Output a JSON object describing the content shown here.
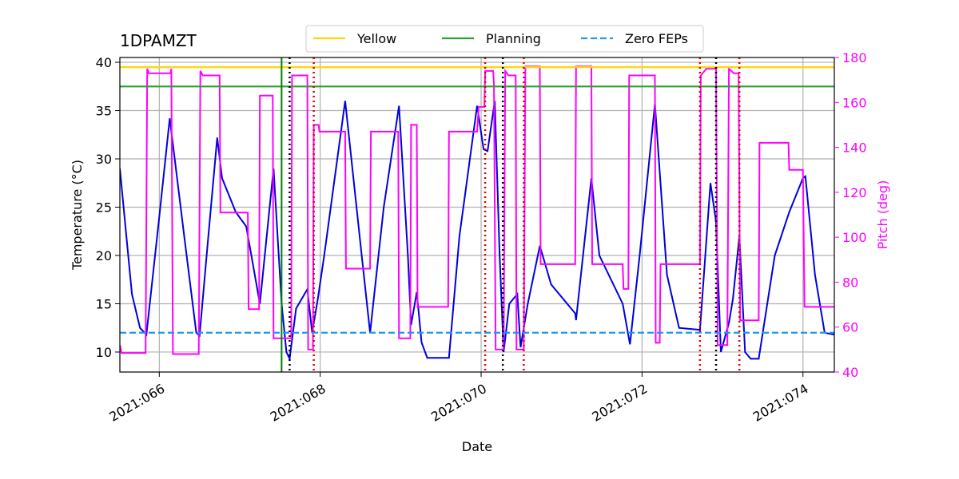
{
  "chart_data": {
    "type": "line",
    "title": "1DPAMZT",
    "xlabel": "Date",
    "ylabel": "Temperature (°C)",
    "y2label": "Pitch (deg)",
    "y2color": "#ff00ff",
    "xlim": [
      65.51,
      74.39
    ],
    "xticks": [
      {
        "value": 66,
        "label": "2021:066"
      },
      {
        "value": 68,
        "label": "2021:068"
      },
      {
        "value": 70,
        "label": "2021:070"
      },
      {
        "value": 72,
        "label": "2021:072"
      },
      {
        "value": 74,
        "label": "2021:074"
      }
    ],
    "ylim": [
      7.93,
      40.5
    ],
    "yticks": [
      10,
      15,
      20,
      25,
      30,
      35,
      40
    ],
    "y2lim": [
      40,
      180
    ],
    "y2ticks": [
      40,
      60,
      80,
      100,
      120,
      140,
      160,
      180
    ],
    "grid": true,
    "hlines": [
      {
        "name": "Yellow",
        "value": 39.5,
        "color": "#ffd700",
        "style": "solid"
      },
      {
        "name": "Planning",
        "value": 37.5,
        "color": "#2ca02c",
        "style": "solid"
      },
      {
        "name": "Zero FEPs",
        "value": 12,
        "color": "#2196f3",
        "style": "dashed"
      }
    ],
    "vlines": [
      {
        "x": 67.52,
        "color": "#008000",
        "style": "solid"
      },
      {
        "x": 67.62,
        "color": "#000000",
        "style": "dotted"
      },
      {
        "x": 70.27,
        "color": "#000000",
        "style": "dotted"
      },
      {
        "x": 72.92,
        "color": "#000000",
        "style": "dotted"
      },
      {
        "x": 67.92,
        "color": "#e00000",
        "style": "dotted"
      },
      {
        "x": 70.05,
        "color": "#e00000",
        "style": "dotted"
      },
      {
        "x": 70.53,
        "color": "#e00000",
        "style": "dotted"
      },
      {
        "x": 72.72,
        "color": "#e00000",
        "style": "dotted"
      },
      {
        "x": 73.21,
        "color": "#e00000",
        "style": "dotted"
      }
    ],
    "series": [
      {
        "color": "#0000e0",
        "axis": "y",
        "x": [
          65.51,
          65.66,
          65.76,
          65.84,
          66.0,
          66.13,
          66.31,
          66.46,
          66.5,
          66.61,
          66.72,
          66.78,
          66.95,
          67.08,
          67.25,
          67.42,
          67.52,
          67.58,
          67.62,
          67.7,
          67.84,
          67.9,
          67.97,
          68.05,
          68.31,
          68.49,
          68.62,
          68.79,
          68.98,
          69.09,
          69.13,
          69.2,
          69.26,
          69.33,
          69.6,
          69.73,
          69.95,
          70.03,
          70.08,
          70.17,
          70.23,
          70.28,
          70.35,
          70.45,
          70.49,
          70.58,
          70.73,
          70.87,
          71.17,
          71.18,
          71.37,
          71.47,
          71.76,
          71.85,
          71.97,
          72.16,
          72.31,
          72.46,
          72.72,
          72.85,
          72.92,
          72.98,
          73.08,
          73.13,
          73.21,
          73.28,
          73.35,
          73.45,
          73.65,
          73.83,
          74.0,
          74.03,
          74.15,
          74.27,
          74.39
        ],
        "values": [
          29,
          16,
          12.5,
          11.8,
          24,
          34.2,
          22,
          12,
          11.7,
          22,
          32.2,
          28,
          24.5,
          23,
          15,
          29,
          15,
          10,
          9.3,
          14.5,
          16.5,
          12,
          15.5,
          20,
          36,
          22,
          12,
          25,
          35.5,
          20,
          12.8,
          16.2,
          11,
          9.4,
          9.4,
          22,
          35.5,
          31,
          30.8,
          36,
          20,
          10,
          15,
          16,
          10.5,
          15,
          21,
          17,
          14,
          13.3,
          28,
          20,
          15,
          10.8,
          20,
          35.7,
          18,
          12.5,
          12.3,
          27.5,
          23.5,
          10,
          13,
          15.5,
          22,
          10,
          9.3,
          9.3,
          20,
          24.5,
          28,
          28.2,
          18,
          12,
          11.8
        ]
      },
      {
        "color": "#ff00ff",
        "axis": "y2",
        "x": [
          65.51,
          65.53,
          65.83,
          65.85,
          65.87,
          66.14,
          66.15,
          66.17,
          66.49,
          66.51,
          66.54,
          66.75,
          66.76,
          67.1,
          67.11,
          67.24,
          67.25,
          67.41,
          67.42,
          67.64,
          67.65,
          67.84,
          67.85,
          67.91,
          67.92,
          67.98,
          67.99,
          68.31,
          68.32,
          68.62,
          68.63,
          68.97,
          68.98,
          69.12,
          69.13,
          69.2,
          69.21,
          69.59,
          69.6,
          69.95,
          69.97,
          70.04,
          70.05,
          70.15,
          70.16,
          70.18,
          70.28,
          70.3,
          70.34,
          70.43,
          70.44,
          70.53,
          70.55,
          70.73,
          70.74,
          71.17,
          71.18,
          71.37,
          71.38,
          71.76,
          71.77,
          71.83,
          71.84,
          72.16,
          72.17,
          72.22,
          72.23,
          72.72,
          72.73,
          72.8,
          72.92,
          72.94,
          73.06,
          73.08,
          73.14,
          73.2,
          73.22,
          73.45,
          73.46,
          73.82,
          73.83,
          74.0,
          74.02,
          74.39
        ],
        "values": [
          52,
          48.5,
          48.5,
          175,
          173,
          173,
          175,
          48,
          48,
          174,
          172,
          172,
          111,
          111,
          68,
          68,
          163,
          163,
          55,
          55,
          172,
          172,
          50,
          50,
          150,
          150,
          147,
          147,
          86,
          86,
          147,
          147,
          55,
          55,
          150,
          150,
          69,
          69,
          147,
          147,
          158,
          158,
          174,
          174,
          168,
          50,
          50,
          174,
          172,
          172,
          50,
          50,
          176,
          176,
          88,
          88,
          176,
          176,
          88,
          88,
          77,
          77,
          172,
          172,
          53,
          53,
          88,
          88,
          172,
          175,
          175,
          52,
          52,
          175,
          173,
          173,
          63,
          63,
          142,
          142,
          130,
          130,
          69,
          69
        ]
      }
    ]
  }
}
